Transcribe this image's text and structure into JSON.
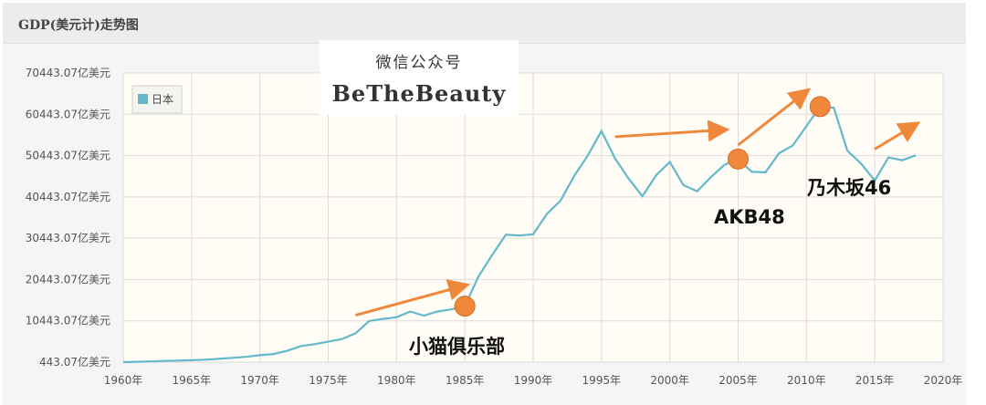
{
  "header": {
    "title": "GDP(美元计)走势图"
  },
  "watermark": {
    "line1": "微信公众号",
    "line2": "BeTheBeauty"
  },
  "annotations": [
    {
      "label": "小猫俱乐部",
      "year": 1985
    },
    {
      "label": "AKB48",
      "year": 2005
    },
    {
      "label": "乃木坂46",
      "year": 2011
    }
  ],
  "colors": {
    "line": "#63b8cc",
    "accent": "#f0883c",
    "plot_bg": "#fffdf5"
  },
  "chart_data": {
    "type": "line",
    "title": "GDP(美元计)走势图",
    "xlabel": "",
    "ylabel": "",
    "xlim": [
      1960,
      2020
    ],
    "ylim": [
      443.07,
      70443.07
    ],
    "y_ticks": [
      "443.07亿美元",
      "10443.07亿美元",
      "20443.07亿美元",
      "30443.07亿美元",
      "40443.07亿美元",
      "50443.07亿美元",
      "60443.07亿美元",
      "70443.07亿美元"
    ],
    "x_ticks": [
      "1960年",
      "1965年",
      "1970年",
      "1975年",
      "1980年",
      "1985年",
      "1990年",
      "1995年",
      "2000年",
      "2005年",
      "2010年",
      "2015年",
      "2020年"
    ],
    "grid": true,
    "legend_position": "top-left",
    "series": [
      {
        "name": "日本",
        "x": [
          1960,
          1961,
          1962,
          1963,
          1964,
          1965,
          1966,
          1967,
          1968,
          1969,
          1970,
          1971,
          1972,
          1973,
          1974,
          1975,
          1976,
          1977,
          1978,
          1979,
          1980,
          1981,
          1982,
          1983,
          1984,
          1985,
          1986,
          1987,
          1988,
          1989,
          1990,
          1991,
          1992,
          1993,
          1994,
          1995,
          1996,
          1997,
          1998,
          1999,
          2000,
          2001,
          2002,
          2003,
          2004,
          2005,
          2006,
          2007,
          2008,
          2009,
          2010,
          2011,
          2012,
          2013,
          2014,
          2015,
          2016,
          2017,
          2018
        ],
        "values": [
          443,
          530,
          610,
          720,
          820,
          910,
          1050,
          1230,
          1470,
          1720,
          2120,
          2400,
          3180,
          4320,
          4800,
          5380,
          6020,
          7420,
          10400,
          10900,
          11300,
          12700,
          11700,
          12700,
          13200,
          14000,
          21200,
          26400,
          31300,
          31100,
          31400,
          36300,
          39500,
          45500,
          50500,
          56400,
          49700,
          44800,
          40600,
          45700,
          48900,
          43300,
          41800,
          45200,
          48200,
          49600,
          46500,
          46400,
          51000,
          52900,
          57600,
          62300,
          62000,
          51600,
          48500,
          44400,
          50000,
          49300,
          50500
        ],
        "color": "#63b8cc"
      }
    ]
  }
}
